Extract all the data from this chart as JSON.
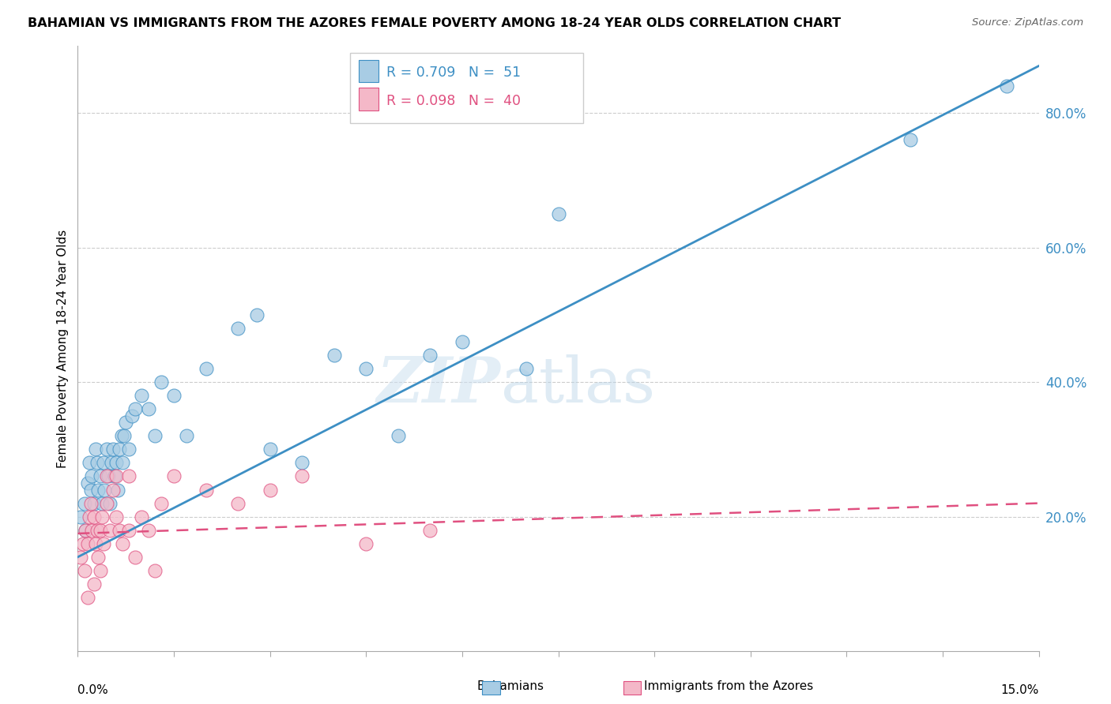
{
  "title": "BAHAMIAN VS IMMIGRANTS FROM THE AZORES FEMALE POVERTY AMONG 18-24 YEAR OLDS CORRELATION CHART",
  "source": "Source: ZipAtlas.com",
  "ylabel": "Female Poverty Among 18-24 Year Olds",
  "xlim": [
    0.0,
    15.0
  ],
  "ylim": [
    0.0,
    90.0
  ],
  "right_yticks": [
    20.0,
    40.0,
    60.0,
    80.0
  ],
  "color_blue": "#a8cce4",
  "color_pink": "#f4b8c8",
  "color_blue_line": "#3d8fc4",
  "color_pink_line": "#e05080",
  "watermark_zip": "ZIP",
  "watermark_atlas": "atlas",
  "bahamians_x": [
    0.05,
    0.1,
    0.12,
    0.15,
    0.18,
    0.2,
    0.22,
    0.25,
    0.28,
    0.3,
    0.32,
    0.35,
    0.38,
    0.4,
    0.42,
    0.45,
    0.48,
    0.5,
    0.52,
    0.55,
    0.58,
    0.6,
    0.62,
    0.65,
    0.68,
    0.7,
    0.72,
    0.75,
    0.8,
    0.85,
    0.9,
    1.0,
    1.1,
    1.2,
    1.3,
    1.5,
    1.7,
    2.0,
    2.5,
    3.0,
    3.5,
    4.0,
    4.5,
    5.0,
    5.5,
    6.0,
    7.0,
    7.5,
    13.0,
    14.5,
    2.8
  ],
  "bahamians_y": [
    20,
    22,
    18,
    25,
    28,
    24,
    26,
    22,
    30,
    28,
    24,
    26,
    22,
    28,
    24,
    30,
    26,
    22,
    28,
    30,
    26,
    28,
    24,
    30,
    32,
    28,
    32,
    34,
    30,
    35,
    36,
    38,
    36,
    32,
    40,
    38,
    32,
    42,
    48,
    30,
    28,
    44,
    42,
    32,
    44,
    46,
    42,
    65,
    76,
    84,
    50
  ],
  "azores_x": [
    0.05,
    0.08,
    0.1,
    0.12,
    0.15,
    0.18,
    0.2,
    0.22,
    0.25,
    0.28,
    0.3,
    0.32,
    0.35,
    0.38,
    0.4,
    0.45,
    0.5,
    0.55,
    0.6,
    0.65,
    0.7,
    0.8,
    0.9,
    1.0,
    1.1,
    1.3,
    1.5,
    2.0,
    2.5,
    3.0,
    3.5,
    4.5,
    5.5,
    0.15,
    0.25,
    0.35,
    0.45,
    0.6,
    0.8,
    1.2
  ],
  "azores_y": [
    14,
    16,
    12,
    18,
    16,
    20,
    22,
    18,
    20,
    16,
    18,
    14,
    18,
    20,
    16,
    22,
    18,
    24,
    20,
    18,
    16,
    18,
    14,
    20,
    18,
    22,
    26,
    24,
    22,
    24,
    26,
    16,
    18,
    8,
    10,
    12,
    26,
    26,
    26,
    12
  ],
  "blue_trend_x0": 0.0,
  "blue_trend_y0": 14.0,
  "blue_trend_x1": 15.0,
  "blue_trend_y1": 87.0,
  "pink_trend_x0": 0.0,
  "pink_trend_y0": 17.5,
  "pink_trend_x1": 15.0,
  "pink_trend_y1": 22.0
}
